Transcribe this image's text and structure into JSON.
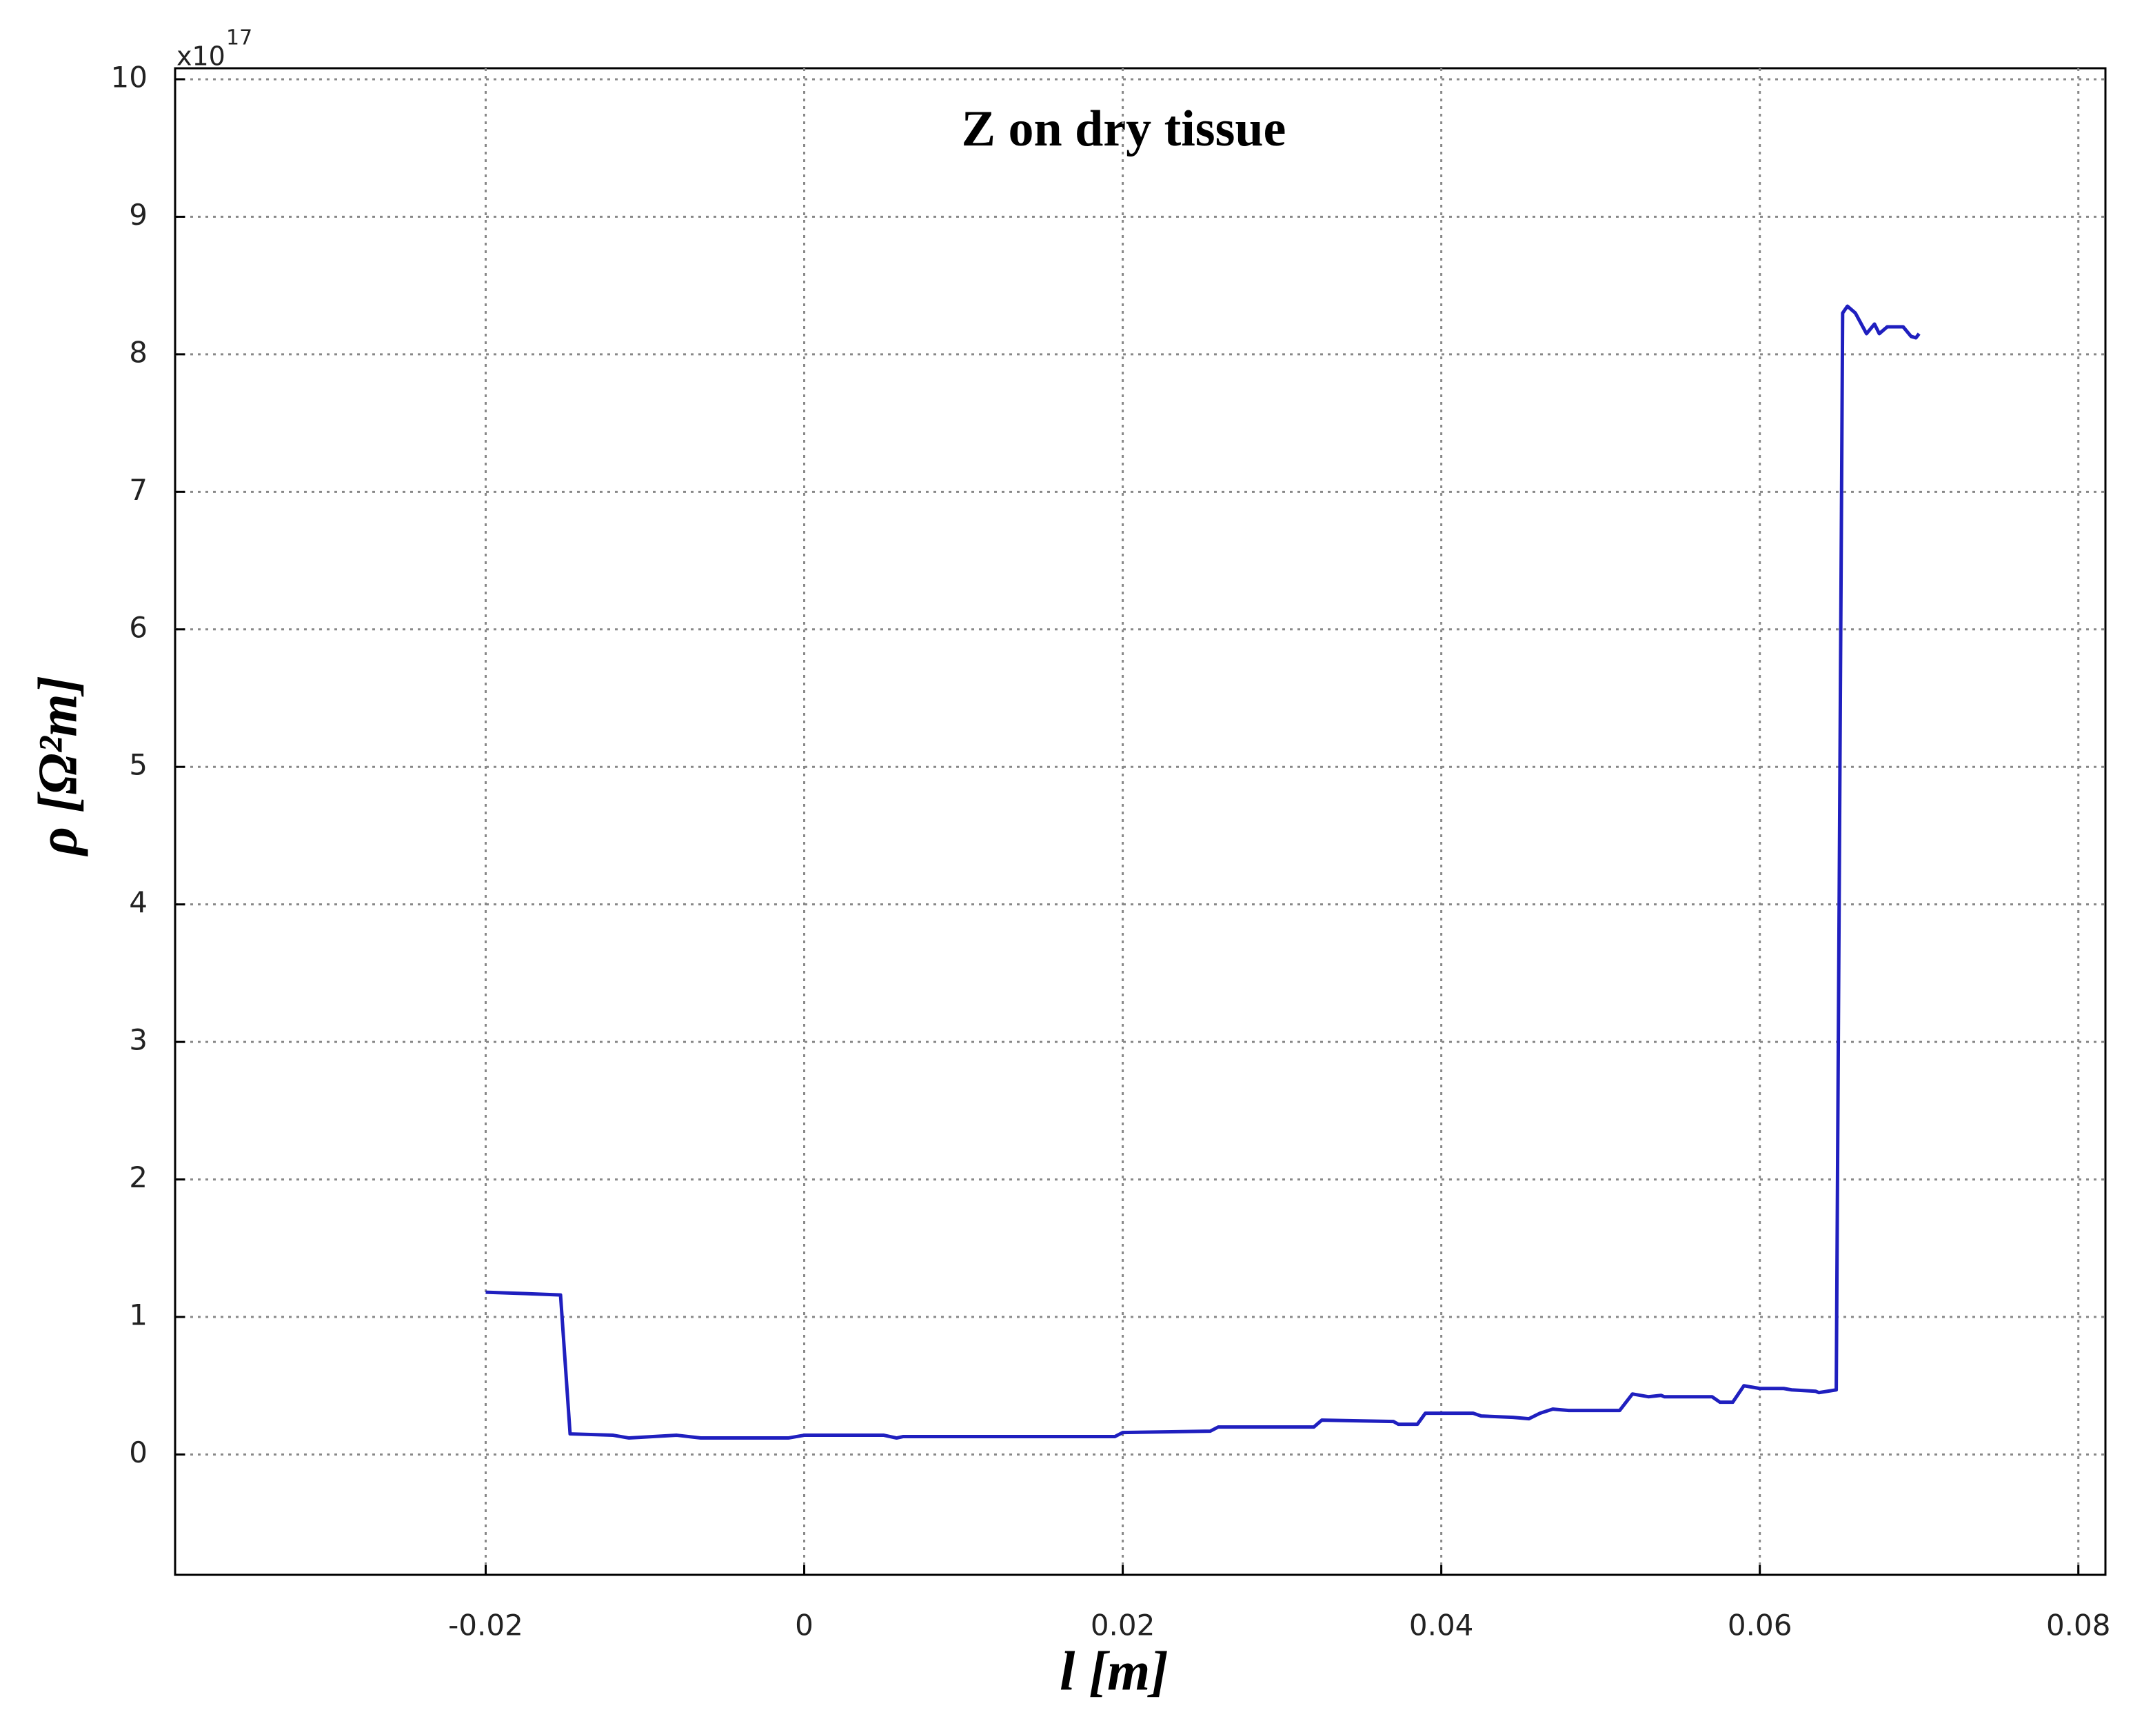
{
  "chart_data": {
    "type": "line",
    "title": "Z on dry tissue",
    "x_label": "l [m]",
    "y_label": "ρ [Ω²m]",
    "y_multiplier": "x10",
    "y_multiplier_exponent": "17",
    "xlim": [
      -0.0395,
      0.0817
    ],
    "ylim": [
      -0.875,
      10.08
    ],
    "xticks": [
      -0.02,
      0,
      0.02,
      0.04,
      0.06,
      0.08
    ],
    "yticks": [
      0,
      1,
      2,
      3,
      4,
      5,
      6,
      7,
      8,
      9,
      10
    ],
    "grid": true,
    "x": [
      -0.02,
      -0.0175,
      -0.0153,
      -0.0147,
      -0.012,
      -0.011,
      -0.008,
      -0.0065,
      -0.001,
      0,
      0.005,
      0.0058,
      0.0062,
      0.0195,
      0.02,
      0.0255,
      0.026,
      0.032,
      0.0325,
      0.037,
      0.0373,
      0.0385,
      0.039,
      0.042,
      0.0425,
      0.0445,
      0.0455,
      0.0462,
      0.047,
      0.048,
      0.0512,
      0.052,
      0.053,
      0.0538,
      0.054,
      0.057,
      0.0575,
      0.0583,
      0.059,
      0.06,
      0.0615,
      0.062,
      0.0635,
      0.0637,
      0.0648,
      0.0652,
      0.0655,
      0.066,
      0.0667,
      0.0672,
      0.0675,
      0.068,
      0.069,
      0.0695,
      0.0698,
      0.07
    ],
    "series": [
      {
        "name": "Z",
        "color": "#1f1fbf",
        "values": [
          1.18,
          1.17,
          1.16,
          0.15,
          0.14,
          0.12,
          0.14,
          0.12,
          0.12,
          0.14,
          0.14,
          0.12,
          0.13,
          0.13,
          0.16,
          0.17,
          0.2,
          0.2,
          0.25,
          0.24,
          0.22,
          0.22,
          0.3,
          0.3,
          0.28,
          0.27,
          0.26,
          0.3,
          0.33,
          0.32,
          0.32,
          0.44,
          0.42,
          0.43,
          0.42,
          0.42,
          0.38,
          0.38,
          0.5,
          0.48,
          0.48,
          0.47,
          0.46,
          0.45,
          0.47,
          8.3,
          8.35,
          8.3,
          8.15,
          8.22,
          8.15,
          8.2,
          8.2,
          8.13,
          8.12,
          8.15
        ]
      }
    ]
  }
}
